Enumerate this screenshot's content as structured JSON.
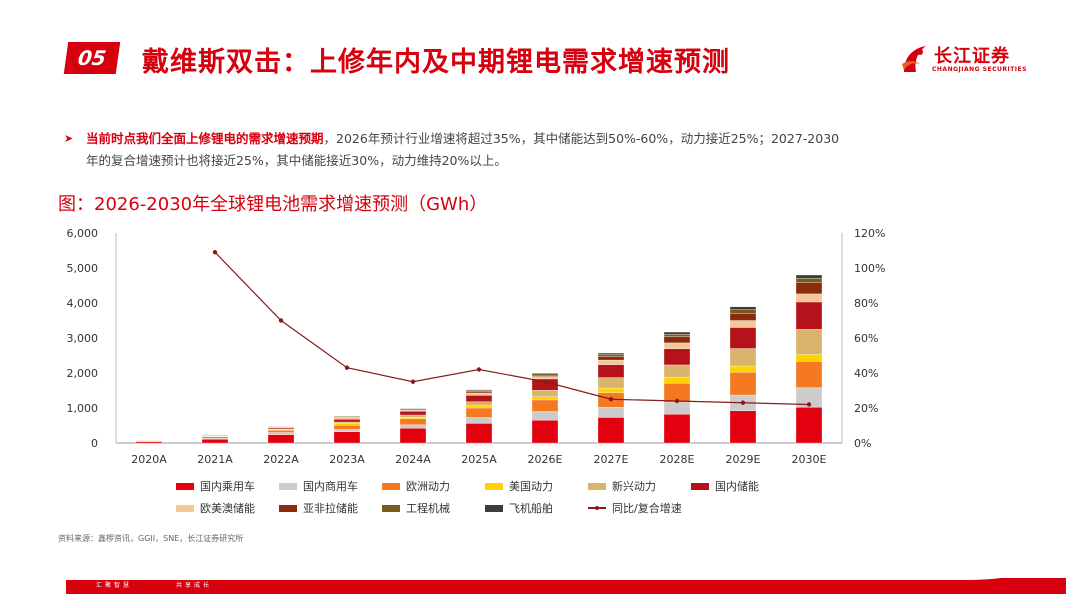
{
  "header": {
    "section_number": "05",
    "title": "戴维斯双击：上修年内及中期锂电需求增速预测",
    "logo_cn": "长江证券",
    "logo_en": "CHANGJIANG SECURITIES"
  },
  "bullet": {
    "bold_text": "当前时点我们全面上修锂电的需求增速预期",
    "line1_rest": "，2026年预计行业增速将超过35%，其中储能达到50%-60%，动力接近25%；2027-2030",
    "line2": "年的复合增速预计也将接近25%，其中储能接近30%，动力维持20%以上。"
  },
  "figure_title": "图：2026-2030年全球锂电池需求增速预测（GWh）",
  "source": "资料来源：鑫椤资讯，GGII，SNE，长江证券研究所",
  "footer": {
    "left": "汇聚智慧",
    "right": "共享成长"
  },
  "chart_data": {
    "type": "bar",
    "stacked": true,
    "categories": [
      "2020A",
      "2021A",
      "2022A",
      "2023A",
      "2024A",
      "2025A",
      "2026E",
      "2027E",
      "2028E",
      "2029E",
      "2030E"
    ],
    "ylim": [
      0,
      6000
    ],
    "yticks": [
      "0",
      "1,000",
      "2,000",
      "3,000",
      "4,000",
      "5,000",
      "6,000"
    ],
    "y2lim": [
      0,
      120
    ],
    "y2ticks": [
      "0%",
      "20%",
      "40%",
      "60%",
      "80%",
      "100%",
      "120%"
    ],
    "series": [
      {
        "name": "国内乘用车",
        "color": "#e3000f",
        "values": [
          40,
          110,
          240,
          320,
          420,
          560,
          650,
          730,
          820,
          920,
          1020
        ]
      },
      {
        "name": "国内商用车",
        "color": "#cccccc",
        "values": [
          10,
          30,
          60,
          70,
          100,
          170,
          250,
          290,
          340,
          450,
          560
        ]
      },
      {
        "name": "欧洲动力",
        "color": "#f47920",
        "values": [
          15,
          40,
          60,
          120,
          170,
          270,
          330,
          420,
          550,
          650,
          750
        ]
      },
      {
        "name": "美国动力",
        "color": "#ffd200",
        "values": [
          5,
          10,
          20,
          50,
          50,
          70,
          90,
          130,
          170,
          180,
          200
        ]
      },
      {
        "name": "新兴动力",
        "color": "#d9b46c",
        "values": [
          5,
          10,
          20,
          40,
          60,
          110,
          190,
          300,
          350,
          500,
          720
        ]
      },
      {
        "name": "国内储能",
        "color": "#b5121b",
        "values": [
          5,
          15,
          30,
          80,
          110,
          180,
          320,
          370,
          460,
          600,
          780
        ]
      },
      {
        "name": "欧美澳储能",
        "color": "#f5c89a",
        "values": [
          3,
          10,
          20,
          40,
          30,
          70,
          70,
          130,
          170,
          200,
          230
        ]
      },
      {
        "name": "亚非拉储能",
        "color": "#8b2a0c",
        "values": [
          1,
          3,
          10,
          20,
          20,
          40,
          40,
          100,
          180,
          200,
          320
        ]
      },
      {
        "name": "工程机械",
        "color": "#7a5a1e",
        "values": [
          2,
          5,
          10,
          20,
          20,
          30,
          40,
          60,
          70,
          110,
          130
        ]
      },
      {
        "name": "飞机船舶",
        "color": "#3c3c3c",
        "values": [
          1,
          2,
          5,
          10,
          10,
          20,
          20,
          40,
          60,
          80,
          90
        ]
      }
    ],
    "line": {
      "name": "同比/复合增速",
      "color": "#8b1a1a",
      "values": [
        null,
        109,
        70,
        43,
        35,
        42,
        35,
        25,
        24,
        23,
        22
      ]
    }
  }
}
